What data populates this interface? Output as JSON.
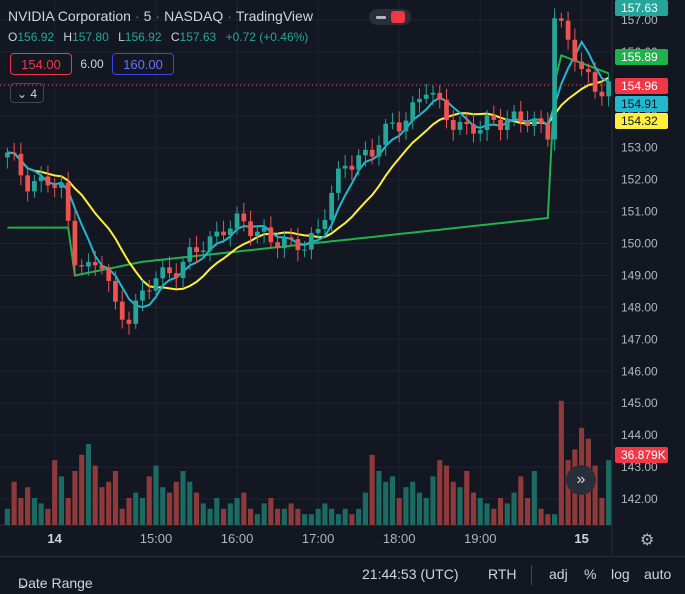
{
  "header": {
    "symbol": "NVIDIA Corporation",
    "interval": "5",
    "exchange": "NASDAQ",
    "source": "TradingView"
  },
  "ohlc": {
    "o_label": "O",
    "o": "156.92",
    "h_label": "H",
    "h": "157.80",
    "l_label": "L",
    "l": "156.92",
    "c_label": "C",
    "c": "157.63",
    "change": "+0.72 (+0.46%)"
  },
  "order_panel": {
    "sell_price": "154.00",
    "spread": "6.00",
    "buy_price": "160.00"
  },
  "indicators_toggle": {
    "count": "4"
  },
  "price_badges": {
    "last_top": "157.63",
    "green_ma": "155.89",
    "current": "154.96",
    "cyan_ma": "154.91",
    "yellow_ma": "154.32",
    "volume": "36.879K"
  },
  "colors": {
    "background": "#131722",
    "up": "#26a69a",
    "down": "#ef5350",
    "ma_cyan": "#22b8cf",
    "ma_yellow": "#ffee3a",
    "ma_green": "#1fb24a",
    "sell": "#f23645",
    "buy": "#3d46e6"
  },
  "footer": {
    "date_range": "Date Range",
    "time": "21:44:53 (UTC)",
    "session": "RTH",
    "adj": "adj",
    "percent": "%",
    "log": "log",
    "auto": "auto"
  },
  "chart_data": {
    "type": "candlestick",
    "y_ticks": [
      "157.00",
      "156.00",
      "155.00",
      "154.00",
      "153.00",
      "152.00",
      "151.00",
      "150.00",
      "149.00",
      "148.00",
      "147.00",
      "146.00",
      "145.00",
      "144.00",
      "143.00",
      "142.00"
    ],
    "ylim": [
      141.2,
      157.6
    ],
    "x_ticks": [
      {
        "label": "14",
        "bar": 7
      },
      {
        "label": "15:00",
        "bar": 22
      },
      {
        "label": "16:00",
        "bar": 34
      },
      {
        "label": "17:00",
        "bar": 46
      },
      {
        "label": "18:00",
        "bar": 58
      },
      {
        "label": "19:00",
        "bar": 70
      },
      {
        "label": "15",
        "bar": 85
      }
    ],
    "bar_count": 90,
    "volume_k": [
      3,
      8,
      5,
      7,
      5,
      4,
      3,
      12,
      9,
      5,
      10,
      13,
      15,
      11,
      7,
      8,
      10,
      3,
      5,
      6,
      5,
      9,
      11,
      7,
      6,
      8,
      10,
      8,
      6,
      4,
      3,
      5,
      3,
      4,
      5,
      6,
      3,
      2,
      4,
      5,
      3,
      3,
      4,
      3,
      2,
      2,
      3,
      4,
      3,
      2,
      3,
      2,
      3,
      6,
      13,
      10,
      8,
      9,
      5,
      7,
      8,
      6,
      5,
      9,
      12,
      11,
      8,
      7,
      10,
      6,
      5,
      4,
      3,
      5,
      4,
      6,
      9,
      5,
      10,
      3,
      2,
      2,
      23,
      12,
      14,
      18,
      16,
      11,
      5,
      12
    ],
    "ma_green_start": 150.5,
    "ma_green_end": 155.89
  }
}
